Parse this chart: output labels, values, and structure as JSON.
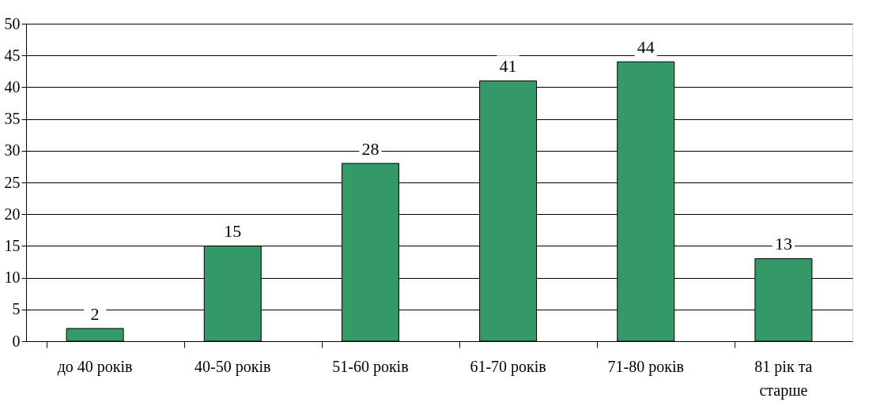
{
  "chart_data": {
    "type": "bar",
    "categories": [
      "до 40 років",
      "40-50 років",
      "51-60 років",
      "61-70 років",
      "71-80 років",
      "81 рік та старше"
    ],
    "values": [
      2,
      15,
      28,
      41,
      44,
      13
    ],
    "color": "#339966",
    "ylim": [
      0,
      50
    ],
    "yticks": [
      0,
      5,
      10,
      15,
      20,
      25,
      30,
      35,
      40,
      45,
      50
    ],
    "grid": "y",
    "data_labels": true
  }
}
